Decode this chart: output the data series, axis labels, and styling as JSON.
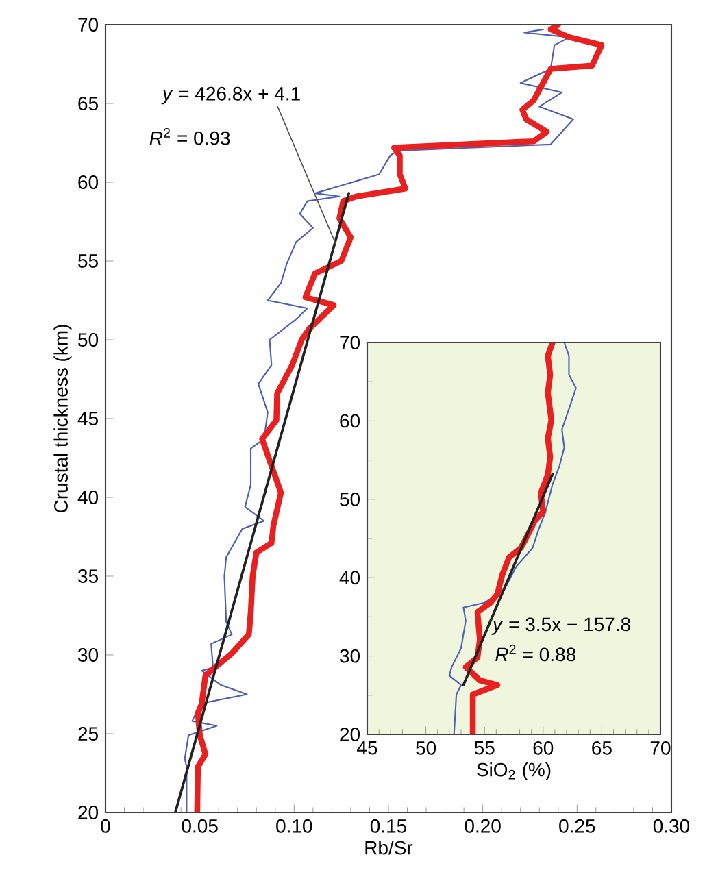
{
  "chart_data": [
    {
      "type": "line",
      "xlabel": "Rb/Sr",
      "ylabel": "Crustal thickness (km)",
      "xlim": [
        0,
        0.3
      ],
      "ylim": [
        20,
        70
      ],
      "xticks": [
        0,
        0.05,
        {
          "value": 0.1,
          "label": "0.10"
        },
        0.15,
        {
          "value": 0.2,
          "label": "0.20"
        },
        0.25,
        {
          "value": 0.3,
          "label": "0.30"
        }
      ],
      "yticks": [
        20,
        25,
        30,
        35,
        40,
        45,
        50,
        55,
        60,
        65,
        70
      ],
      "series": [
        {
          "color": "#4a5fb5",
          "x": [
            0.043,
            0.043,
            0.042,
            0.044,
            0.059,
            0.046,
            0.05,
            0.075,
            0.061,
            0.051,
            0.057,
            0.056,
            0.067,
            0.064,
            0.063,
            0.064,
            0.0725,
            0.084,
            0.074,
            0.077,
            0.077,
            0.084,
            0.086,
            0.081,
            0.088,
            0.087,
            0.101,
            0.107,
            0.086,
            0.093,
            0.096,
            0.101,
            0.11,
            0.103,
            0.107,
            0.124,
            0.111,
            0.145,
            0.151,
            0.155,
            0.236,
            0.248,
            0.23,
            0.242,
            0.22,
            0.236,
            0.238,
            0.246,
            0.222,
            0.232
          ],
          "values": [
            20,
            22.9,
            23.4,
            24.9,
            25.5,
            25.8,
            26.9,
            27.5,
            28.1,
            29,
            29.2,
            30.7,
            31.3,
            32.1,
            35,
            36.2,
            38,
            38.5,
            39.4,
            40.8,
            43.1,
            43.7,
            45.4,
            47.2,
            48.4,
            50,
            51.3,
            52,
            52.5,
            53.6,
            54.8,
            56.2,
            57.1,
            58,
            58.8,
            59.1,
            59.3,
            60.5,
            61.7,
            62,
            62.4,
            64,
            64.8,
            65.7,
            66.3,
            67.2,
            68.7,
            69.2,
            69.5,
            69.7
          ]
        },
        {
          "color": "#e8201f",
          "x": [
            0.0486,
            0.049,
            0.053,
            0.05,
            0.049,
            0.051,
            0.053,
            0.058,
            0.067,
            0.076,
            0.077,
            0.078,
            0.08,
            0.088,
            0.089,
            0.093,
            0.088,
            0.083,
            0.0906,
            0.091,
            0.099,
            0.104,
            0.108,
            0.121,
            0.106,
            0.111,
            0.125,
            0.13,
            0.124,
            0.126,
            0.133,
            0.159,
            0.156,
            0.156,
            0.153,
            0.227,
            0.234,
            0.223,
            0.221,
            0.227,
            0.232,
            0.236,
            0.258,
            0.263,
            0.246,
            0.236,
            0.24
          ],
          "values": [
            20,
            22.9,
            23.7,
            24.9,
            26.3,
            26.9,
            28.7,
            29.2,
            30.1,
            31.3,
            32.7,
            35,
            36.5,
            37.1,
            38.2,
            40.3,
            42,
            43.7,
            44.9,
            46.6,
            48.4,
            50,
            50.7,
            52.2,
            52.7,
            54.2,
            55,
            56.5,
            57.7,
            58.8,
            59.1,
            59.6,
            60.5,
            61.7,
            62.2,
            62.6,
            63.2,
            64,
            64.6,
            65.2,
            66.3,
            67.2,
            67.4,
            68.7,
            69.2,
            69.7,
            70
          ]
        },
        {
          "color": "#222222",
          "x": [
            0.037,
            0.129
          ],
          "values": [
            20,
            59.3
          ]
        }
      ],
      "annotations": [
        {
          "text": "*y* = 426.8x + 4.1",
          "x": 0.122,
          "y": 56.1
        },
        "*R*$^{2}$ = 0.93"
      ]
    },
    {
      "type": "line",
      "xlabel": "SiO$_{2}$ (%)",
      "xlim": [
        45,
        70
      ],
      "ylim": [
        20,
        70
      ],
      "xticks": [
        45,
        50,
        55,
        60,
        65,
        70
      ],
      "yticks": [
        20,
        30,
        40,
        50,
        60,
        70
      ],
      "series": [
        {
          "color": "#4a5fb5",
          "x": [
            52.4,
            52.6,
            53.0,
            52.0,
            52.2,
            53.0,
            53.4,
            53.2,
            55.0,
            56.7,
            57.7,
            59.1,
            59.6,
            60.2,
            60.8,
            61.4,
            61.8,
            61.6,
            62.4,
            62.8,
            62.2,
            62.2,
            61.8
          ],
          "values": [
            20,
            25.1,
            26.3,
            27.5,
            28.6,
            31,
            34.5,
            36.2,
            36.8,
            38.5,
            41.4,
            43.8,
            46.1,
            48.4,
            51.9,
            54.3,
            56.6,
            58.9,
            62.4,
            64.2,
            65.9,
            68.3,
            70
          ]
        },
        {
          "color": "#e8201f",
          "x": [
            54.0,
            54.0,
            56.1,
            54.6,
            53.4,
            54.4,
            54.6,
            54.4,
            55.5,
            56.1,
            56.5,
            57.1,
            58.1,
            58.5,
            59.3,
            60.0,
            59.8,
            60.4,
            60.6,
            60.4,
            60.7,
            60.4,
            60.6,
            60.4,
            60.8
          ],
          "values": [
            20,
            25.1,
            26.3,
            26.9,
            28.6,
            29.8,
            32.1,
            35.6,
            36.8,
            37.9,
            40.3,
            42.6,
            43.8,
            44.9,
            47.3,
            48.4,
            50.8,
            53.1,
            55.4,
            57.8,
            60.1,
            63.6,
            65.9,
            68.3,
            70
          ]
        },
        {
          "color": "#222222",
          "x": [
            53.2,
            60.8
          ],
          "values": [
            26.3,
            53.2
          ]
        }
      ],
      "annotations": [
        "*y* = 3.5x − 157.8",
        "*R*$^{2}$ = 0.88"
      ]
    }
  ]
}
